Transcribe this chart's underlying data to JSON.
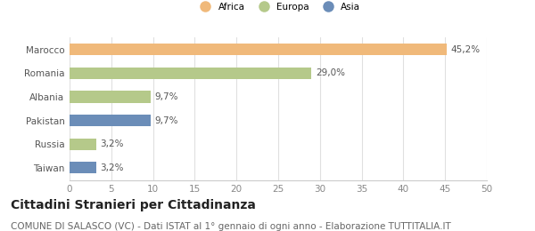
{
  "categories": [
    "Taiwan",
    "Russia",
    "Pakistan",
    "Albania",
    "Romania",
    "Marocco"
  ],
  "values": [
    3.2,
    3.2,
    9.7,
    9.7,
    29.0,
    45.2
  ],
  "labels": [
    "3,2%",
    "3,2%",
    "9,7%",
    "9,7%",
    "29,0%",
    "45,2%"
  ],
  "colors": [
    "#6b8db8",
    "#b5c98a",
    "#6b8db8",
    "#b5c98a",
    "#b5c98a",
    "#f0b97a"
  ],
  "legend": [
    {
      "label": "Africa",
      "color": "#f0b97a"
    },
    {
      "label": "Europa",
      "color": "#b5c98a"
    },
    {
      "label": "Asia",
      "color": "#6b8db8"
    }
  ],
  "xlim": [
    0,
    50
  ],
  "xticks": [
    0,
    5,
    10,
    15,
    20,
    25,
    30,
    35,
    40,
    45,
    50
  ],
  "title": "Cittadini Stranieri per Cittadinanza",
  "subtitle": "COMUNE DI SALASCO (VC) - Dati ISTAT al 1° gennaio di ogni anno - Elaborazione TUTTITALIA.IT",
  "title_fontsize": 10,
  "subtitle_fontsize": 7.5,
  "label_fontsize": 7.5,
  "tick_fontsize": 7.5,
  "bar_height": 0.5,
  "background_color": "#ffffff"
}
